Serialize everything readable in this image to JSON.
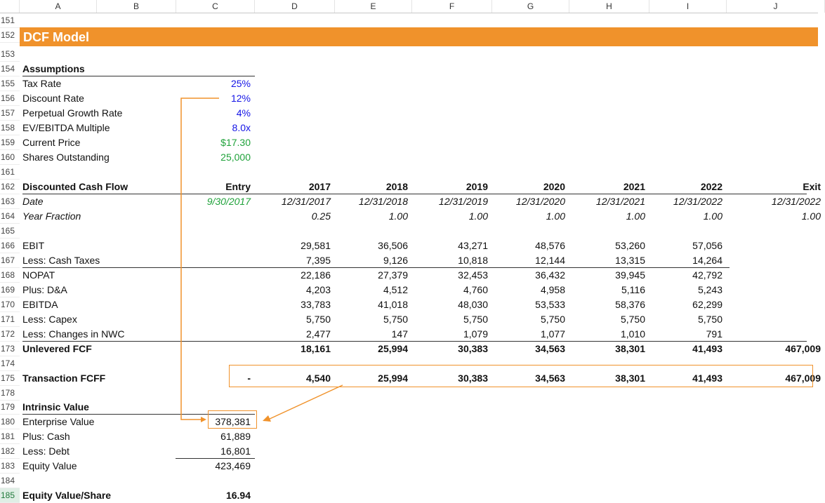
{
  "columns": [
    "A",
    "B",
    "C",
    "D",
    "E",
    "F",
    "G",
    "H",
    "I",
    "J"
  ],
  "rows": [
    "151",
    "152",
    "153",
    "154",
    "155",
    "156",
    "157",
    "158",
    "159",
    "160",
    "161",
    "162",
    "163",
    "164",
    "165",
    "166",
    "167",
    "168",
    "169",
    "170",
    "171",
    "172",
    "173",
    "174",
    "175",
    "178",
    "179",
    "180",
    "181",
    "182",
    "183",
    "184",
    "185"
  ],
  "title": "DCF Model",
  "assumptions": {
    "heading": "Assumptions",
    "items": [
      {
        "label": "Tax Rate",
        "value": "25%"
      },
      {
        "label": "Discount Rate",
        "value": "12%"
      },
      {
        "label": "Perpetual Growth Rate",
        "value": "4%"
      },
      {
        "label": "EV/EBITDA Multiple",
        "value": "8.0x"
      },
      {
        "label": "Current Price",
        "value": "$17.30"
      },
      {
        "label": "Shares Outstanding",
        "value": "25,000"
      }
    ]
  },
  "dcf": {
    "heading": "Discounted Cash Flow",
    "headers": [
      "Entry",
      "2017",
      "2018",
      "2019",
      "2020",
      "2021",
      "2022",
      "Exit"
    ],
    "date_label": "Date",
    "dates": [
      "9/30/2017",
      "12/31/2017",
      "12/31/2018",
      "12/31/2019",
      "12/31/2020",
      "12/31/2021",
      "12/31/2022",
      "12/31/2022"
    ],
    "yf_label": "Year Fraction",
    "year_fraction": [
      "0.25",
      "1.00",
      "1.00",
      "1.00",
      "1.00",
      "1.00",
      "1.00"
    ],
    "lines": [
      {
        "label": "EBIT",
        "values": [
          "29,581",
          "36,506",
          "43,271",
          "48,576",
          "53,260",
          "57,056"
        ]
      },
      {
        "label": "Less: Cash Taxes",
        "values": [
          "7,395",
          "9,126",
          "10,818",
          "12,144",
          "13,315",
          "14,264"
        ]
      },
      {
        "label": "NOPAT",
        "values": [
          "22,186",
          "27,379",
          "32,453",
          "36,432",
          "39,945",
          "42,792"
        ]
      },
      {
        "label": "Plus: D&A",
        "values": [
          "4,203",
          "4,512",
          "4,760",
          "4,958",
          "5,116",
          "5,243"
        ]
      },
      {
        "label": "EBITDA",
        "values": [
          "33,783",
          "41,018",
          "48,030",
          "53,533",
          "58,376",
          "62,299"
        ]
      },
      {
        "label": "Less: Capex",
        "values": [
          "5,750",
          "5,750",
          "5,750",
          "5,750",
          "5,750",
          "5,750"
        ]
      },
      {
        "label": "Less: Changes in NWC",
        "values": [
          "2,477",
          "147",
          "1,079",
          "1,077",
          "1,010",
          "791"
        ]
      }
    ],
    "unlevered": {
      "label": "Unlevered FCF",
      "values": [
        "18,161",
        "25,994",
        "30,383",
        "34,563",
        "38,301",
        "41,493",
        "467,009"
      ]
    },
    "transaction": {
      "label": "Transaction FCFF",
      "values": [
        "-",
        "4,540",
        "25,994",
        "30,383",
        "34,563",
        "38,301",
        "41,493",
        "467,009"
      ]
    }
  },
  "intrinsic": {
    "heading": "Intrinsic Value",
    "items": [
      {
        "label": "Enterprise Value",
        "value": "378,381"
      },
      {
        "label": "Plus: Cash",
        "value": "61,889"
      },
      {
        "label": "Less: Debt",
        "value": "16,801"
      },
      {
        "label": "Equity Value",
        "value": "423,469"
      }
    ],
    "per_share": {
      "label": "Equity Value/Share",
      "value": "16.94"
    }
  },
  "colors": {
    "accent": "#f0922b",
    "input_blue": "#1414e6",
    "link_green": "#1fa23a"
  }
}
